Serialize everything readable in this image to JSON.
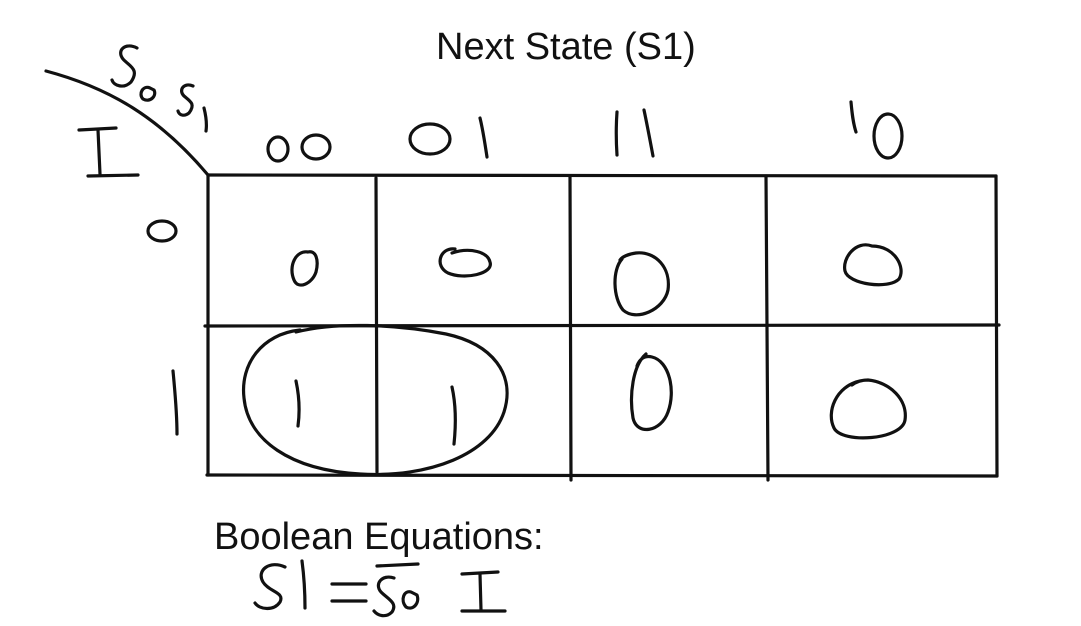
{
  "title": "Next State (S1)",
  "row_variable": "I",
  "column_variables": "S0 S1",
  "column_headers": [
    "00",
    "01",
    "11",
    "10"
  ],
  "row_headers": [
    "0",
    "1"
  ],
  "cells": [
    [
      "0",
      "0",
      "0",
      "0"
    ],
    [
      "1",
      "1",
      "0",
      "0"
    ]
  ],
  "grouping": "rows I=1, columns 00 and 01",
  "equations_label": "Boolean Equations:",
  "equation": "S1 = S0̅ I",
  "colors": {
    "ink": "#111111",
    "background": "#ffffff"
  }
}
